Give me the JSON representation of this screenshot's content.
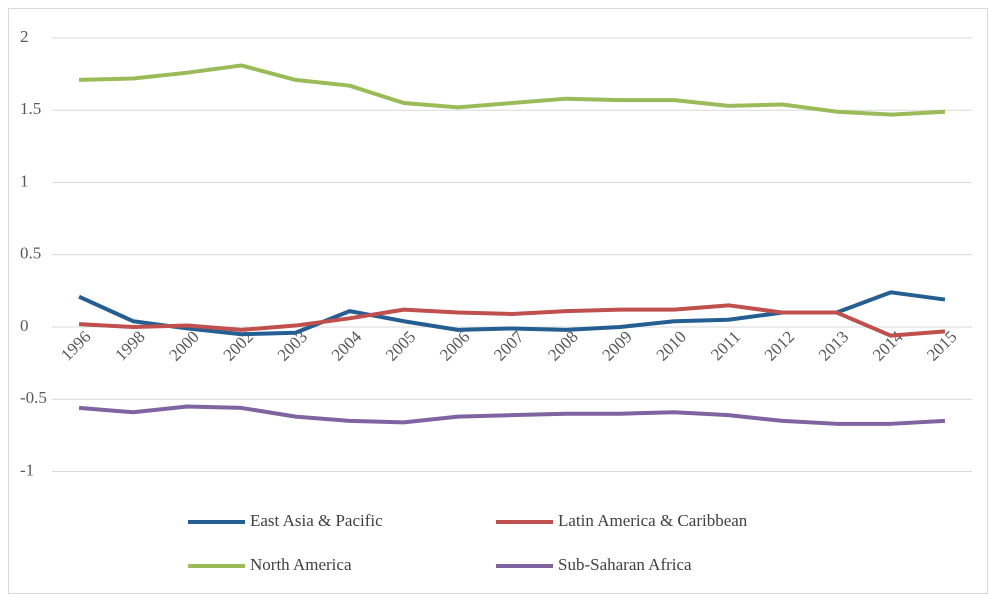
{
  "chart_data": {
    "type": "line",
    "categories": [
      "1996",
      "1998",
      "2000",
      "2002",
      "2003",
      "2004",
      "2005",
      "2006",
      "2007",
      "2008",
      "2009",
      "2010",
      "2011",
      "2012",
      "2013",
      "2014",
      "2015"
    ],
    "series": [
      {
        "name": "East Asia & Pacific",
        "color": "#255E91",
        "values": [
          0.21,
          0.04,
          -0.01,
          -0.05,
          -0.04,
          0.11,
          0.04,
          -0.02,
          -0.01,
          -0.02,
          0.0,
          0.04,
          0.05,
          0.1,
          0.1,
          0.24,
          0.19
        ]
      },
      {
        "name": "Latin America & Caribbean",
        "color": "#C0504D",
        "values": [
          0.02,
          0.0,
          0.01,
          -0.02,
          0.01,
          0.06,
          0.12,
          0.1,
          0.09,
          0.11,
          0.12,
          0.12,
          0.15,
          0.1,
          0.1,
          -0.06,
          -0.03
        ]
      },
      {
        "name": "North America",
        "color": "#9BBB59",
        "values": [
          1.71,
          1.72,
          1.76,
          1.81,
          1.71,
          1.67,
          1.55,
          1.52,
          1.55,
          1.58,
          1.57,
          1.57,
          1.53,
          1.54,
          1.49,
          1.47,
          1.49
        ]
      },
      {
        "name": "Sub-Saharan Africa",
        "color": "#8064A2",
        "values": [
          -0.56,
          -0.59,
          -0.55,
          -0.56,
          -0.62,
          -0.65,
          -0.66,
          -0.62,
          -0.61,
          -0.6,
          -0.6,
          -0.59,
          -0.61,
          -0.65,
          -0.67,
          -0.67,
          -0.65
        ]
      }
    ],
    "ylim": [
      -1,
      2
    ],
    "yticks": [
      -1,
      -0.5,
      0,
      0.5,
      1,
      1.5,
      2
    ],
    "grid": true,
    "legend": "bottom"
  }
}
